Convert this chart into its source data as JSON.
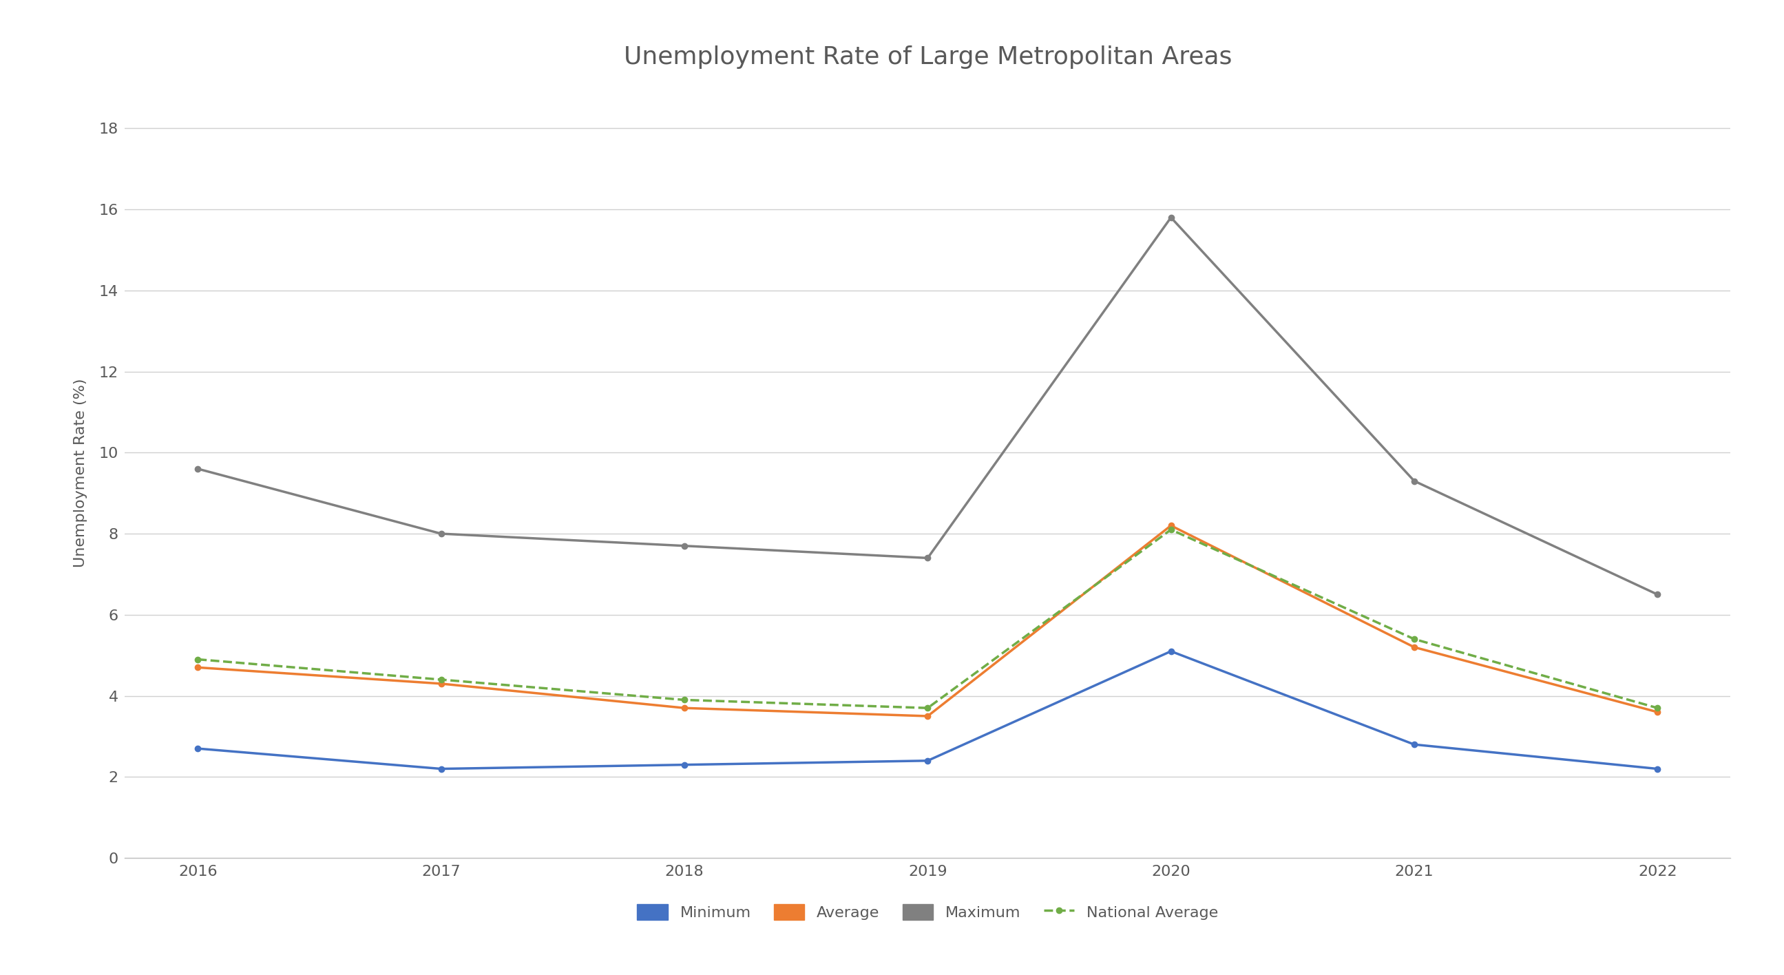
{
  "title": "Unemployment Rate of Large Metropolitan Areas",
  "xlabel": "",
  "ylabel": "Unemployment Rate (%)",
  "years": [
    2016,
    2017,
    2018,
    2019,
    2020,
    2021,
    2022
  ],
  "minimum": [
    2.7,
    2.2,
    2.3,
    2.4,
    5.1,
    2.8,
    2.2
  ],
  "average": [
    4.7,
    4.3,
    3.7,
    3.5,
    8.2,
    5.2,
    3.6
  ],
  "maximum": [
    9.6,
    8.0,
    7.7,
    7.4,
    15.8,
    9.3,
    6.5
  ],
  "national_average": [
    4.9,
    4.4,
    3.9,
    3.7,
    8.1,
    5.4,
    3.7
  ],
  "line_colors": {
    "minimum": "#4472C4",
    "average": "#ED7D31",
    "maximum": "#808080",
    "national_average": "#70AD47"
  },
  "ylim": [
    0,
    19
  ],
  "yticks": [
    0,
    2,
    4,
    6,
    8,
    10,
    12,
    14,
    16,
    18
  ],
  "background_color": "#ffffff",
  "plot_bg_color": "#ffffff",
  "grid_color": "#d0d0d0",
  "text_color": "#595959",
  "legend_labels": [
    "Minimum",
    "Average",
    "Maximum",
    "National Average"
  ],
  "title_fontsize": 26,
  "axis_label_fontsize": 16,
  "tick_fontsize": 16,
  "legend_fontsize": 16,
  "line_width": 2.5
}
